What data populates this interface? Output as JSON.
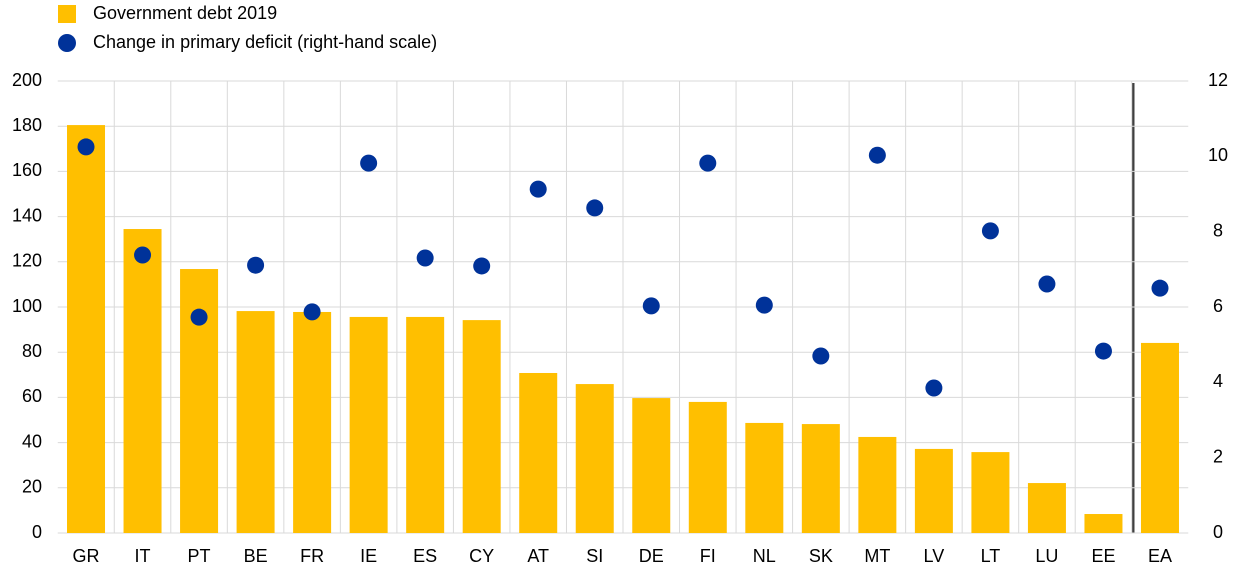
{
  "chart_data": {
    "type": "bar_scatter",
    "categories": [
      "GR",
      "IT",
      "PT",
      "BE",
      "FR",
      "IE",
      "ES",
      "CY",
      "AT",
      "SI",
      "DE",
      "FI",
      "NL",
      "SK",
      "MT",
      "LV",
      "LT",
      "LU",
      "EE",
      "EA"
    ],
    "series": [
      {
        "name": "Government debt 2019",
        "type": "bar",
        "color": "#ffbf00",
        "values": [
          180.5,
          134.5,
          116.8,
          98.2,
          97.8,
          95.6,
          95.6,
          94.2,
          70.8,
          65.9,
          59.7,
          58.0,
          48.7,
          48.2,
          42.5,
          37.2,
          35.8,
          22.1,
          8.4,
          84.1
        ]
      },
      {
        "name": "Change in primary deficit (right-hand scale)",
        "type": "scatter",
        "axis": "y2",
        "color": "#003299",
        "values": [
          10.25,
          7.38,
          5.73,
          7.11,
          5.87,
          9.82,
          7.3,
          7.09,
          9.13,
          8.63,
          6.03,
          9.82,
          6.05,
          4.7,
          10.03,
          3.85,
          8.02,
          6.61,
          4.83,
          6.5
        ]
      }
    ],
    "ylim": [
      0,
      200
    ],
    "yticks": [
      0,
      20,
      40,
      60,
      80,
      100,
      120,
      140,
      160,
      180,
      200
    ],
    "y2lim": [
      0,
      12
    ],
    "y2ticks": [
      0,
      2,
      4,
      6,
      8,
      10,
      12
    ],
    "grid": true
  }
}
